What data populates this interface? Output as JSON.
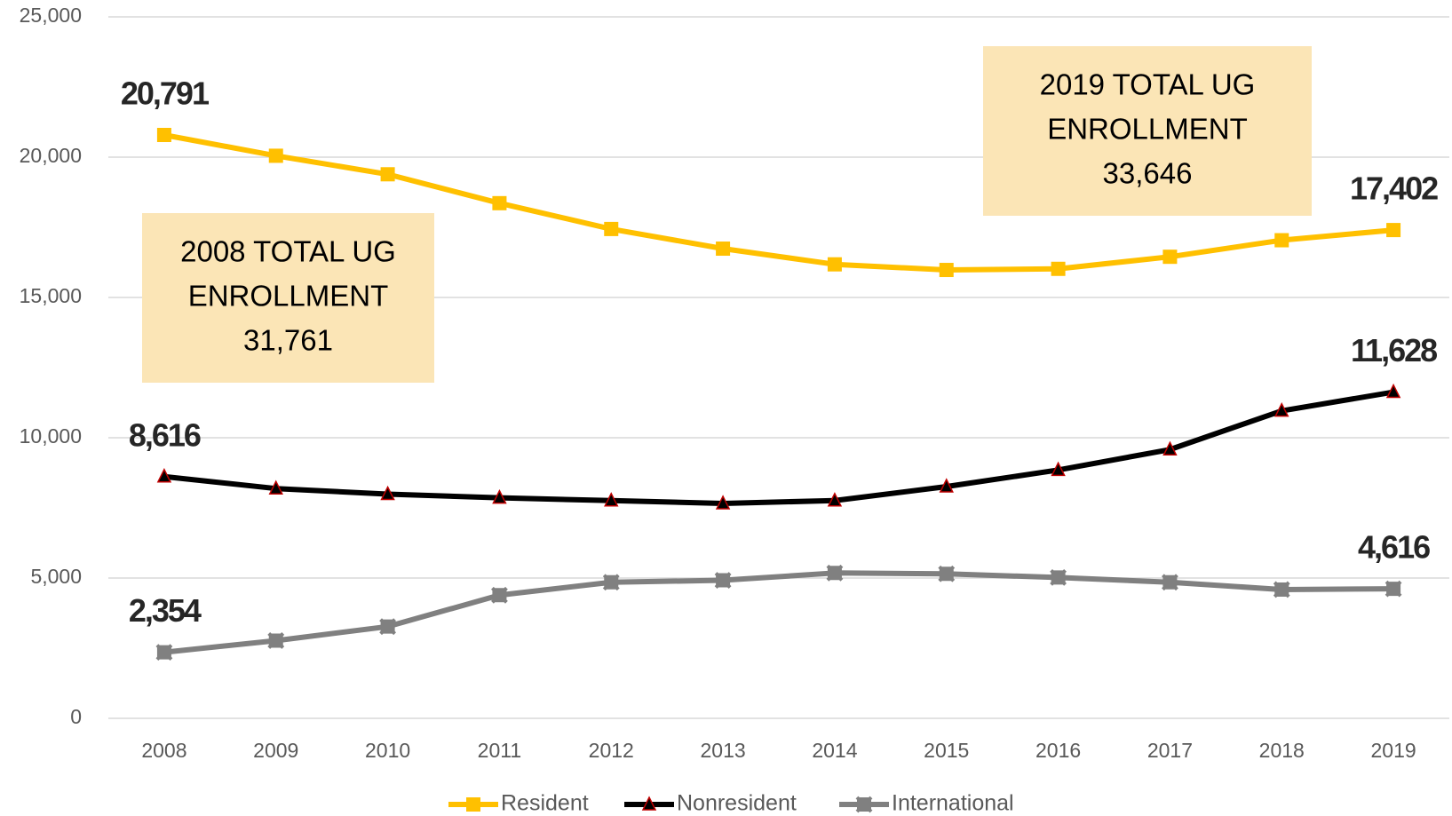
{
  "chart_data": {
    "type": "line",
    "categories": [
      "2008",
      "2009",
      "2010",
      "2011",
      "2012",
      "2013",
      "2014",
      "2015",
      "2016",
      "2017",
      "2018",
      "2019"
    ],
    "series": [
      {
        "name": "Resident",
        "color": "#ffc000",
        "marker": "square",
        "values": [
          20791,
          20050,
          19390,
          18360,
          17440,
          16740,
          16180,
          15980,
          16020,
          16450,
          17040,
          17402
        ],
        "value_labels": [
          "20,791",
          null,
          null,
          null,
          null,
          null,
          null,
          null,
          null,
          null,
          null,
          "17,402"
        ]
      },
      {
        "name": "Nonresident",
        "color": "#000000",
        "marker": "triangle",
        "values": [
          8616,
          8190,
          7990,
          7860,
          7760,
          7660,
          7760,
          8260,
          8850,
          9580,
          10960,
          11628
        ],
        "value_labels": [
          "8,616",
          null,
          null,
          null,
          null,
          null,
          null,
          null,
          null,
          null,
          null,
          "11,628"
        ]
      },
      {
        "name": "International",
        "color": "#808080",
        "marker": "star",
        "values": [
          2354,
          2770,
          3270,
          4390,
          4850,
          4920,
          5180,
          5150,
          5020,
          4850,
          4590,
          4616
        ],
        "value_labels": [
          "2,354",
          null,
          null,
          null,
          null,
          null,
          null,
          null,
          null,
          null,
          null,
          "4,616"
        ]
      }
    ],
    "ylim": [
      0,
      25000
    ],
    "yticks": [
      0,
      {
        "value": 5000,
        "label": "5,000"
      },
      {
        "value": 10000,
        "label": "10,000"
      },
      {
        "value": 15000,
        "label": "15,000"
      },
      {
        "value": 20000,
        "label": "20,000"
      },
      {
        "value": 25000,
        "label": "25,000"
      }
    ],
    "grid": true,
    "legend": "bottom",
    "annotations": [
      {
        "lines": [
          "2008 TOTAL UG",
          "ENROLLMENT",
          "31,761"
        ]
      },
      {
        "lines": [
          "2019 TOTAL UG",
          "ENROLLMENT",
          "33,646"
        ]
      }
    ]
  }
}
